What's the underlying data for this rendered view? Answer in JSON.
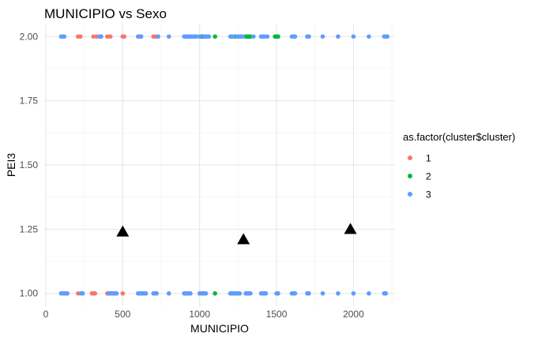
{
  "chart_data": {
    "type": "scatter",
    "title": "MUNICIPIO vs Sexo",
    "xlabel": "MUNICIPIO",
    "ylabel": "PEI3",
    "xlim": [
      -10,
      2270
    ],
    "ylim": [
      0.95,
      2.05
    ],
    "x_ticks": [
      0,
      500,
      1000,
      1500,
      2000
    ],
    "y_ticks": [
      1.0,
      1.25,
      1.5,
      1.75,
      2.0
    ],
    "x_tick_labels": [
      "0",
      "500",
      "1000",
      "1500",
      "2000"
    ],
    "y_tick_labels": [
      "1.00",
      "1.25",
      "1.50",
      "1.75",
      "2.00"
    ],
    "grid": true,
    "legend": {
      "title": "as.factor(cluster$cluster)",
      "placement": "right"
    },
    "series": [
      {
        "name": "1",
        "color": "#F8766D",
        "points": [
          [
            210,
            2
          ],
          [
            225,
            2
          ],
          [
            310,
            2
          ],
          [
            330,
            2
          ],
          [
            400,
            2
          ],
          [
            420,
            2
          ],
          [
            500,
            2
          ],
          [
            510,
            2
          ],
          [
            610,
            2
          ],
          [
            700,
            2
          ],
          [
            715,
            2
          ],
          [
            210,
            1
          ],
          [
            300,
            1
          ],
          [
            310,
            1
          ],
          [
            320,
            1
          ],
          [
            400,
            1
          ],
          [
            500,
            1
          ]
        ]
      },
      {
        "name": "2",
        "color": "#00BA38",
        "points": [
          [
            1010,
            2
          ],
          [
            1020,
            2
          ],
          [
            1100,
            2
          ],
          [
            1230,
            2
          ],
          [
            1300,
            2
          ],
          [
            1310,
            2
          ],
          [
            1320,
            2
          ],
          [
            1330,
            2
          ],
          [
            1490,
            2
          ],
          [
            1500,
            2
          ],
          [
            1510,
            2
          ],
          [
            1100,
            1
          ]
        ]
      },
      {
        "name": "3",
        "color": "#619CFF",
        "points": [
          [
            100,
            2
          ],
          [
            110,
            2
          ],
          [
            120,
            2
          ],
          [
            350,
            2
          ],
          [
            360,
            2
          ],
          [
            600,
            2
          ],
          [
            620,
            2
          ],
          [
            730,
            2
          ],
          [
            800,
            2
          ],
          [
            900,
            2
          ],
          [
            910,
            2
          ],
          [
            920,
            2
          ],
          [
            930,
            2
          ],
          [
            940,
            2
          ],
          [
            950,
            2
          ],
          [
            960,
            2
          ],
          [
            970,
            2
          ],
          [
            980,
            2
          ],
          [
            1000,
            2
          ],
          [
            1030,
            2
          ],
          [
            1040,
            2
          ],
          [
            1050,
            2
          ],
          [
            1060,
            2
          ],
          [
            1200,
            2
          ],
          [
            1210,
            2
          ],
          [
            1220,
            2
          ],
          [
            1250,
            2
          ],
          [
            1260,
            2
          ],
          [
            1270,
            2
          ],
          [
            1280,
            2
          ],
          [
            1350,
            2
          ],
          [
            1400,
            2
          ],
          [
            1410,
            2
          ],
          [
            1420,
            2
          ],
          [
            1440,
            2
          ],
          [
            1600,
            2
          ],
          [
            1610,
            2
          ],
          [
            1620,
            2
          ],
          [
            1700,
            2
          ],
          [
            1710,
            2
          ],
          [
            1800,
            2
          ],
          [
            1900,
            2
          ],
          [
            2000,
            2
          ],
          [
            2100,
            2
          ],
          [
            2200,
            2
          ],
          [
            2210,
            2
          ],
          [
            2220,
            2
          ],
          [
            100,
            1
          ],
          [
            110,
            1
          ],
          [
            120,
            1
          ],
          [
            130,
            1
          ],
          [
            140,
            1
          ],
          [
            230,
            1
          ],
          [
            240,
            1
          ],
          [
            410,
            1
          ],
          [
            420,
            1
          ],
          [
            430,
            1
          ],
          [
            440,
            1
          ],
          [
            450,
            1
          ],
          [
            460,
            1
          ],
          [
            600,
            1
          ],
          [
            610,
            1
          ],
          [
            620,
            1
          ],
          [
            630,
            1
          ],
          [
            640,
            1
          ],
          [
            650,
            1
          ],
          [
            700,
            1
          ],
          [
            710,
            1
          ],
          [
            720,
            1
          ],
          [
            800,
            1
          ],
          [
            900,
            1
          ],
          [
            910,
            1
          ],
          [
            920,
            1
          ],
          [
            930,
            1
          ],
          [
            940,
            1
          ],
          [
            1000,
            1
          ],
          [
            1010,
            1
          ],
          [
            1020,
            1
          ],
          [
            1030,
            1
          ],
          [
            1040,
            1
          ],
          [
            1200,
            1
          ],
          [
            1210,
            1
          ],
          [
            1220,
            1
          ],
          [
            1230,
            1
          ],
          [
            1240,
            1
          ],
          [
            1250,
            1
          ],
          [
            1260,
            1
          ],
          [
            1300,
            1
          ],
          [
            1310,
            1
          ],
          [
            1320,
            1
          ],
          [
            1330,
            1
          ],
          [
            1400,
            1
          ],
          [
            1410,
            1
          ],
          [
            1420,
            1
          ],
          [
            1430,
            1
          ],
          [
            1500,
            1
          ],
          [
            1510,
            1
          ],
          [
            1600,
            1
          ],
          [
            1610,
            1
          ],
          [
            1620,
            1
          ],
          [
            1700,
            1
          ],
          [
            1710,
            1
          ],
          [
            1800,
            1
          ],
          [
            1900,
            1
          ],
          [
            2000,
            1
          ],
          [
            2100,
            1
          ],
          [
            2200,
            1
          ],
          [
            2210,
            1
          ]
        ]
      }
    ],
    "centroids": {
      "shape": "triangle",
      "color": "#000000",
      "points": [
        [
          500,
          1.24
        ],
        [
          1285,
          1.21
        ],
        [
          1980,
          1.25
        ]
      ]
    }
  }
}
